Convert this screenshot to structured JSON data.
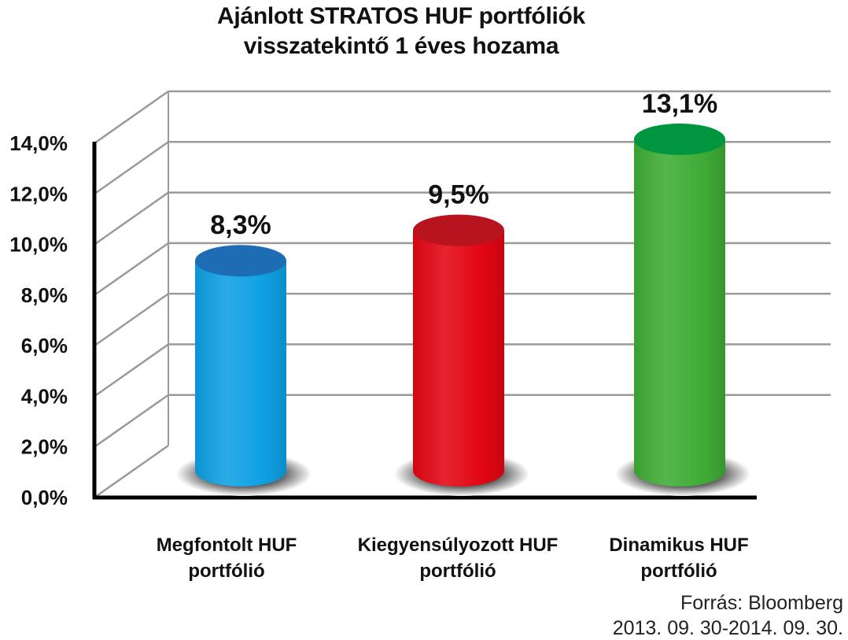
{
  "chart_data": {
    "type": "bar",
    "title_lines": [
      "Ajánlott STRATOS HUF portfóliók",
      "visszatekintő 1 éves hozama"
    ],
    "categories": [
      [
        "Megfontolt HUF",
        "portfólió"
      ],
      [
        "Kiegyensúlyozott HUF",
        "portfólió"
      ],
      [
        "Dinamikus HUF",
        "portfólió"
      ]
    ],
    "values": [
      8.3,
      9.5,
      13.1
    ],
    "value_labels": [
      "8,3%",
      "9,5%",
      "13,1%"
    ],
    "ylim": [
      0,
      14
    ],
    "yticks": [
      "0,0%",
      "2,0%",
      "4,0%",
      "6,0%",
      "8,0%",
      "10,0%",
      "12,0%",
      "14,0%"
    ],
    "grid": true,
    "style": "3d-cylinder",
    "colors": [
      {
        "body": "#0ea0e4",
        "top": "#1e6db4"
      },
      {
        "body": "#e30613",
        "top": "#b8141f"
      },
      {
        "body": "#3fac35",
        "top": "#00963f"
      }
    ]
  },
  "source": {
    "line1": "Forrás: Bloomberg",
    "line2": "2013. 09. 30-2014. 09. 30."
  }
}
